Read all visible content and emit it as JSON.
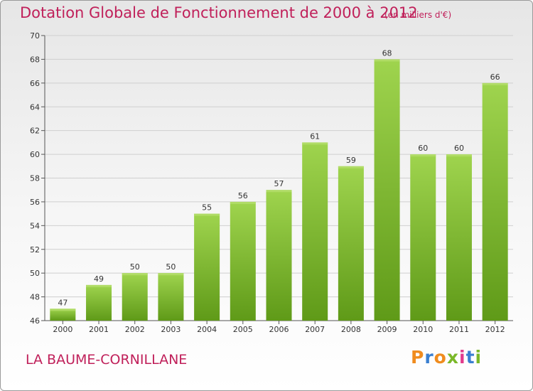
{
  "header": {
    "title": "Dotation Globale de Fonctionnement de 2000 à 2012",
    "unit": "(en milliers d'€)"
  },
  "footer": {
    "commune": "LA BAUME-CORNILLANE",
    "logo_text": "Proxiti",
    "logo_colors": [
      "#f08c1e",
      "#3a7fd0",
      "#f08c1e",
      "#7ab829",
      "#e23b8c",
      "#3a7fd0",
      "#7ab829"
    ]
  },
  "colors": {
    "bar_top": "#9fd44e",
    "bar_bottom": "#5f9a18",
    "title": "#c0205a",
    "grid": "#cfcfcf"
  },
  "chart_data": {
    "type": "bar",
    "title": "Dotation Globale de Fonctionnement de 2000 à 2012",
    "categories": [
      "2000",
      "2001",
      "2002",
      "2003",
      "2004",
      "2005",
      "2006",
      "2007",
      "2008",
      "2009",
      "2010",
      "2011",
      "2012"
    ],
    "values": [
      47,
      49,
      50,
      50,
      55,
      56,
      57,
      61,
      59,
      68,
      60,
      60,
      66
    ],
    "ylim": [
      46,
      70
    ],
    "yticks": [
      46,
      48,
      50,
      52,
      54,
      56,
      58,
      60,
      62,
      64,
      66,
      68,
      70
    ],
    "grid": true,
    "data_labels": true
  }
}
